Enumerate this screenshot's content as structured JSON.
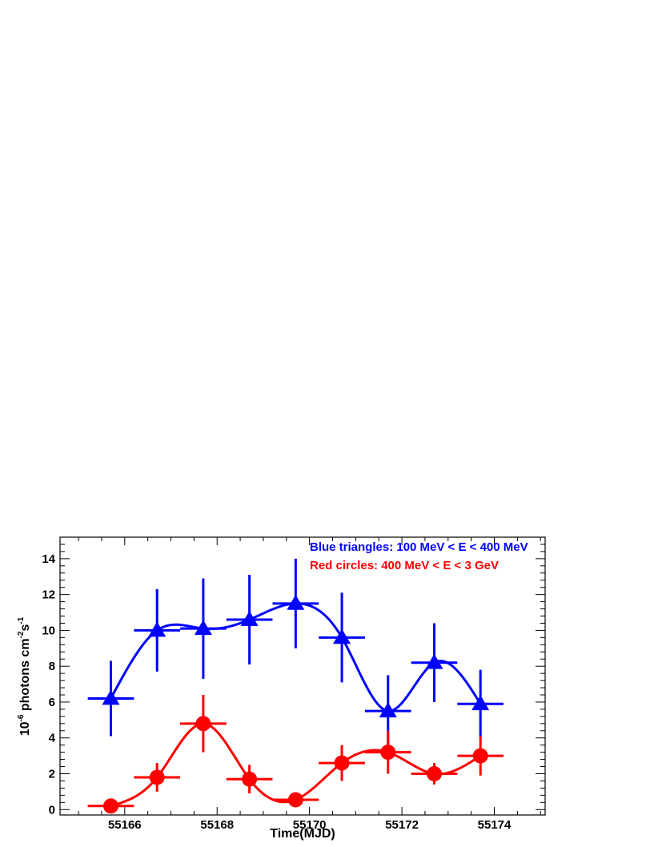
{
  "chart_data": {
    "type": "scatter",
    "xlabel": "Time(MJD)",
    "ylabel": {
      "prefix": "10",
      "exp1": "-6",
      "mid": " photons cm",
      "exp2": "-2",
      "mid2": "s",
      "exp3": "-1"
    },
    "xlim": [
      55164.6,
      55175.1
    ],
    "ylim": [
      -0.3,
      15.2
    ],
    "x_ticks": [
      55166,
      55168,
      55170,
      55172,
      55174
    ],
    "y_ticks": [
      0,
      2,
      4,
      6,
      8,
      10,
      12,
      14
    ],
    "grid": false,
    "legend_position": "top-right",
    "series": [
      {
        "name": "Blue triangles: 100 MeV < E < 400 MeV",
        "color": "#0000ff",
        "marker": "triangle",
        "points": [
          {
            "x": 55165.7,
            "y": 6.2,
            "xerr": 0.5,
            "yerr": 2.1
          },
          {
            "x": 55166.7,
            "y": 10.0,
            "xerr": 0.5,
            "yerr": 2.3
          },
          {
            "x": 55167.7,
            "y": 10.1,
            "xerr": 0.5,
            "yerr": 2.8
          },
          {
            "x": 55168.7,
            "y": 10.6,
            "xerr": 0.5,
            "yerr": 2.5
          },
          {
            "x": 55169.7,
            "y": 11.5,
            "xerr": 0.5,
            "yerr": 2.5
          },
          {
            "x": 55170.7,
            "y": 9.6,
            "xerr": 0.5,
            "yerr": 2.5
          },
          {
            "x": 55171.7,
            "y": 5.5,
            "xerr": 0.5,
            "yerr": 2.0
          },
          {
            "x": 55172.7,
            "y": 8.2,
            "xerr": 0.5,
            "yerr": 2.2
          },
          {
            "x": 55173.7,
            "y": 5.9,
            "xerr": 0.5,
            "yerr": 1.9
          }
        ]
      },
      {
        "name": "Red circles: 400 MeV < E < 3 GeV",
        "color": "#ff0000",
        "marker": "circle",
        "points": [
          {
            "x": 55165.7,
            "y": 0.2,
            "xerr": 0.5,
            "yerr": 0.2
          },
          {
            "x": 55166.7,
            "y": 1.8,
            "xerr": 0.5,
            "yerr": 0.8
          },
          {
            "x": 55167.7,
            "y": 4.8,
            "xerr": 0.5,
            "yerr": 1.6
          },
          {
            "x": 55168.7,
            "y": 1.7,
            "xerr": 0.5,
            "yerr": 0.8
          },
          {
            "x": 55169.7,
            "y": 0.55,
            "xerr": 0.5,
            "yerr": 0.4
          },
          {
            "x": 55170.7,
            "y": 2.6,
            "xerr": 0.5,
            "yerr": 1.0
          },
          {
            "x": 55171.7,
            "y": 3.2,
            "xerr": 0.5,
            "yerr": 1.2
          },
          {
            "x": 55172.7,
            "y": 2.0,
            "xerr": 0.5,
            "yerr": 0.6
          },
          {
            "x": 55173.7,
            "y": 3.0,
            "xerr": 0.5,
            "yerr": 1.1
          }
        ]
      }
    ]
  }
}
